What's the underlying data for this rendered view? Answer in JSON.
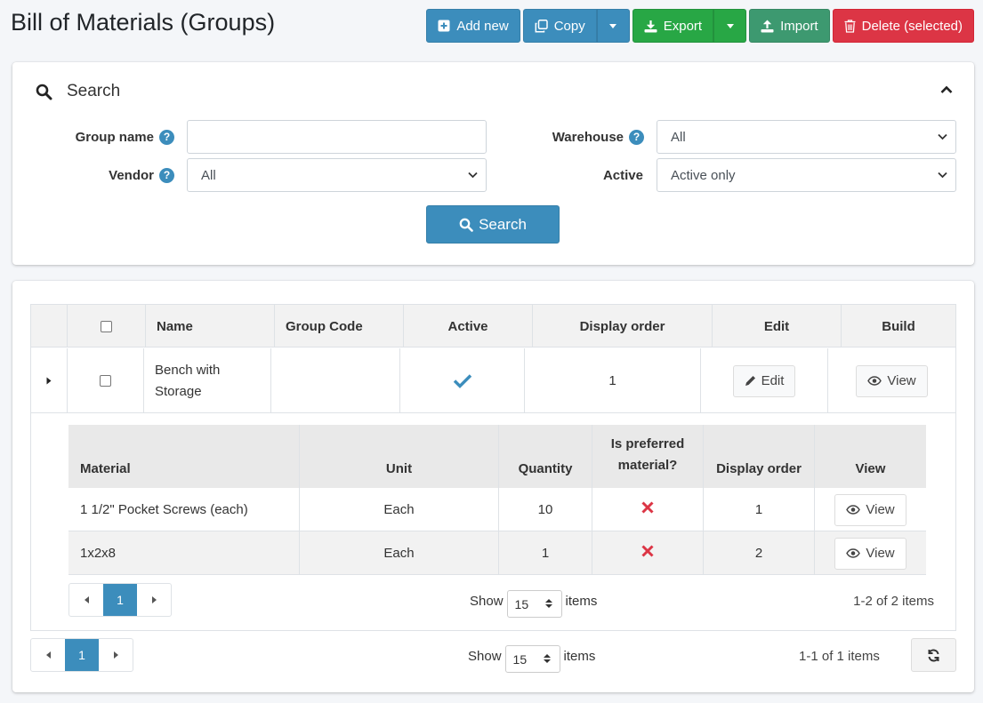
{
  "page": {
    "title": "Bill of Materials (Groups)"
  },
  "toolbar": {
    "add_new": "Add new",
    "copy": "Copy",
    "export": "Export",
    "import": "Import",
    "delete": "Delete (selected)"
  },
  "search": {
    "title": "Search",
    "group_name_label": "Group name",
    "group_name_value": "",
    "vendor_label": "Vendor",
    "vendor_value": "All",
    "warehouse_label": "Warehouse",
    "warehouse_value": "All",
    "active_label": "Active",
    "active_value": "Active only",
    "button": "Search"
  },
  "grid": {
    "columns": [
      "Name",
      "Group Code",
      "Active",
      "Display order",
      "Edit",
      "Build"
    ],
    "rows": [
      {
        "name": "Bench with Storage",
        "group_code": "",
        "active": true,
        "display_order": "1",
        "edit": "Edit",
        "build": "View"
      }
    ],
    "pager": {
      "page": "1",
      "show_label": "Show",
      "page_size": "15",
      "items_label": "items",
      "info": "1-1 of 1 items"
    }
  },
  "detail": {
    "columns": [
      "Material",
      "Unit",
      "Quantity",
      "Is preferred material?",
      "Display order",
      "View"
    ],
    "rows": [
      {
        "material": "1 1/2\" Pocket Screws (each)",
        "unit": "Each",
        "quantity": "10",
        "preferred": false,
        "display_order": "1",
        "view": "View"
      },
      {
        "material": "1x2x8",
        "unit": "Each",
        "quantity": "1",
        "preferred": false,
        "display_order": "2",
        "view": "View"
      }
    ],
    "pager": {
      "page": "1",
      "show_label": "Show",
      "page_size": "15",
      "items_label": "items",
      "info": "1-2 of 2 items"
    }
  },
  "colors": {
    "primary": "#3c8dbc",
    "success": "#28a745",
    "olive": "#3d9970",
    "danger": "#dc3545",
    "check": "#3c8dbc",
    "cross": "#dc3545"
  }
}
